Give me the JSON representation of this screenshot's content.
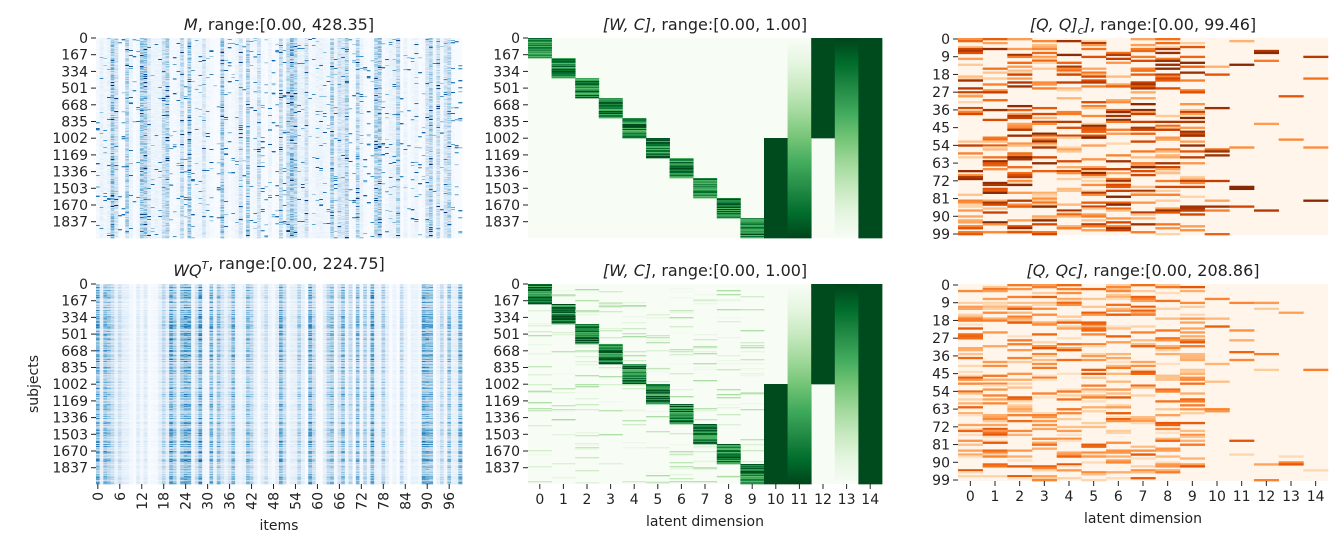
{
  "chart_data": [
    {
      "type": "heatmap",
      "title": "M, range:[0.00, 428.35]",
      "title_math": "M",
      "title_rest": ", range:[0.00, 428.35]",
      "colormap": "Blues",
      "range": [
        0.0,
        428.35
      ],
      "ylabel": "",
      "xlabel": "",
      "yticks": [
        "0",
        "167",
        "334",
        "501",
        "668",
        "835",
        "1002",
        "1169",
        "1336",
        "1503",
        "1670",
        "1837"
      ],
      "xticks": [],
      "pattern": "sparse-noise"
    },
    {
      "type": "heatmap",
      "title": "[W, C], range:[0.00, 1.00]",
      "title_math": "[W, C]",
      "title_rest": ", range:[0.00, 1.00]",
      "colormap": "Greens",
      "range": [
        0.0,
        1.0
      ],
      "ylabel": "",
      "xlabel": "",
      "yticks": [
        "0",
        "167",
        "334",
        "501",
        "668",
        "835",
        "1002",
        "1169",
        "1336",
        "1503",
        "1670",
        "1837"
      ],
      "xticks": [],
      "pattern": "block-diagonal-sharp"
    },
    {
      "type": "heatmap",
      "title": "[Q, Qc], range:[0.00, 99.46]",
      "title_math": "[Q, Q_c]",
      "title_rest": ", range:[0.00, 99.46]",
      "colormap": "Oranges",
      "range": [
        0.0,
        99.46
      ],
      "ylabel": "",
      "xlabel": "",
      "yticks": [
        "0",
        "9",
        "18",
        "27",
        "36",
        "45",
        "54",
        "63",
        "72",
        "81",
        "90",
        "99"
      ],
      "xticks": [],
      "pattern": "sparse-rows"
    },
    {
      "type": "heatmap",
      "title": "WQT, range:[0.00, 224.75]",
      "title_math": "WQ^T",
      "title_rest": ", range:[0.00, 224.75]",
      "colormap": "Blues",
      "range": [
        0.0,
        224.75
      ],
      "ylabel": "subjects",
      "xlabel": "items",
      "yticks": [
        "0",
        "167",
        "334",
        "501",
        "668",
        "835",
        "1002",
        "1169",
        "1336",
        "1503",
        "1670",
        "1837"
      ],
      "xticks": [
        "0",
        "6",
        "12",
        "18",
        "24",
        "30",
        "36",
        "42",
        "48",
        "54",
        "60",
        "66",
        "72",
        "78",
        "84",
        "90",
        "96"
      ],
      "pattern": "smooth-columns"
    },
    {
      "type": "heatmap",
      "title": "[W, C], range:[0.00, 1.00]",
      "title_math": "[W, C]",
      "title_rest": ", range:[0.00, 1.00]",
      "colormap": "Greens",
      "range": [
        0.0,
        1.0
      ],
      "ylabel": "",
      "xlabel": "latent dimension",
      "yticks": [
        "0",
        "167",
        "334",
        "501",
        "668",
        "835",
        "1002",
        "1169",
        "1336",
        "1503",
        "1670",
        "1837"
      ],
      "xticks": [
        "0",
        "1",
        "2",
        "3",
        "4",
        "5",
        "6",
        "7",
        "8",
        "9",
        "10",
        "11",
        "12",
        "13",
        "14"
      ],
      "pattern": "block-diagonal-soft"
    },
    {
      "type": "heatmap",
      "title": "[Q, Qc], range:[0.00, 208.86]",
      "title_math": "[Q, Qc]",
      "title_rest": ", range:[0.00, 208.86]",
      "colormap": "Oranges",
      "range": [
        0.0,
        208.86
      ],
      "ylabel": "",
      "xlabel": "latent dimension",
      "yticks": [
        "0",
        "9",
        "18",
        "27",
        "36",
        "45",
        "54",
        "63",
        "72",
        "81",
        "90",
        "99"
      ],
      "xticks": [
        "0",
        "1",
        "2",
        "3",
        "4",
        "5",
        "6",
        "7",
        "8",
        "9",
        "10",
        "11",
        "12",
        "13",
        "14"
      ],
      "pattern": "sparse-rows-soft"
    }
  ]
}
